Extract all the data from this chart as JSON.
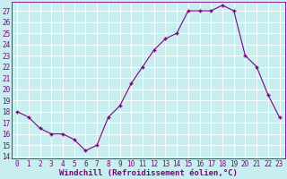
{
  "x": [
    0,
    1,
    2,
    3,
    4,
    5,
    6,
    7,
    8,
    9,
    10,
    11,
    12,
    13,
    14,
    15,
    16,
    17,
    18,
    19,
    20,
    21,
    22,
    23
  ],
  "y": [
    18.0,
    17.5,
    16.5,
    16.0,
    16.0,
    15.5,
    14.5,
    15.0,
    17.5,
    18.5,
    20.5,
    22.0,
    23.5,
    24.5,
    25.0,
    27.0,
    27.0,
    27.0,
    27.5,
    27.0,
    23.0,
    22.0,
    19.5,
    17.5
  ],
  "line_color": "#800080",
  "marker": "+",
  "marker_size": 3,
  "bg_color": "#c8eef0",
  "grid_color": "#b0d8da",
  "xlabel": "Windchill (Refroidissement éolien,°C)",
  "ylim": [
    13.8,
    27.8
  ],
  "yticks": [
    14,
    15,
    16,
    17,
    18,
    19,
    20,
    21,
    22,
    23,
    24,
    25,
    26,
    27
  ],
  "xticks": [
    0,
    1,
    2,
    3,
    4,
    5,
    6,
    7,
    8,
    9,
    10,
    11,
    12,
    13,
    14,
    15,
    16,
    17,
    18,
    19,
    20,
    21,
    22,
    23
  ],
  "tick_fontsize": 5.5,
  "label_fontsize": 6.5
}
